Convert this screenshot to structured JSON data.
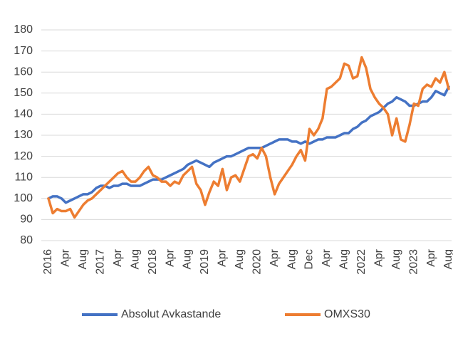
{
  "chart_data": {
    "type": "line",
    "categories": [
      "2016",
      null,
      null,
      null,
      "Apr",
      null,
      null,
      null,
      "Aug",
      null,
      null,
      null,
      "2017",
      null,
      null,
      null,
      "Apr",
      null,
      null,
      null,
      "Aug",
      null,
      null,
      null,
      "2018",
      null,
      null,
      null,
      "Apr",
      null,
      null,
      null,
      "Aug",
      null,
      null,
      null,
      "2019",
      null,
      null,
      null,
      "Apr",
      null,
      null,
      null,
      "Aug",
      null,
      null,
      null,
      "2020",
      null,
      null,
      null,
      "Apr",
      null,
      null,
      null,
      "Aug",
      null,
      null,
      null,
      "Dec",
      null,
      null,
      null,
      "Apr",
      null,
      null,
      null,
      "Aug",
      null,
      null,
      null,
      "2022",
      null,
      null,
      null,
      "Apr",
      null,
      null,
      null,
      "Aug",
      null,
      null,
      null,
      "2023",
      null,
      null,
      null,
      "Apr",
      null,
      null,
      null,
      "Aug"
    ],
    "series": [
      {
        "name": "Absolut Avkastande",
        "color": "#4472c4",
        "values": [
          100,
          101,
          101,
          100,
          98,
          99,
          100,
          101,
          102,
          102,
          103,
          105,
          106,
          106,
          105,
          106,
          106,
          107,
          107,
          106,
          106,
          106,
          107,
          108,
          109,
          109,
          109,
          110,
          111,
          112,
          113,
          114,
          116,
          117,
          118,
          117,
          116,
          115,
          117,
          118,
          119,
          120,
          120,
          121,
          122,
          123,
          124,
          124,
          124,
          124,
          125,
          126,
          127,
          128,
          128,
          128,
          127,
          127,
          126,
          127,
          126,
          127,
          128,
          128,
          129,
          129,
          129,
          130,
          131,
          131,
          133,
          134,
          136,
          137,
          139,
          140,
          141,
          143,
          145,
          146,
          148,
          147,
          146,
          144,
          144,
          145,
          146,
          146,
          148,
          151,
          150,
          149,
          153
        ]
      },
      {
        "name": "OMXS30",
        "color": "#ed7d31",
        "values": [
          100,
          93,
          95,
          94,
          94,
          95,
          91,
          94,
          97,
          99,
          100,
          102,
          104,
          106,
          108,
          110,
          112,
          113,
          110,
          108,
          108,
          110,
          113,
          115,
          111,
          110,
          108,
          108,
          106,
          108,
          107,
          111,
          113,
          115,
          107,
          104,
          97,
          103,
          108,
          106,
          114,
          104,
          110,
          111,
          108,
          114,
          120,
          121,
          119,
          124,
          120,
          110,
          102,
          107,
          110,
          113,
          116,
          120,
          123,
          118,
          133,
          130,
          133,
          138,
          152,
          153,
          155,
          157,
          164,
          163,
          157,
          158,
          167,
          162,
          152,
          148,
          145,
          143,
          140,
          130,
          138,
          128,
          127,
          135,
          145,
          144,
          152,
          154,
          153,
          157,
          155,
          160,
          152
        ]
      }
    ],
    "ylim": [
      80,
      180
    ],
    "yticks": [
      80,
      90,
      100,
      110,
      120,
      130,
      140,
      150,
      160,
      170,
      180
    ],
    "grid": true,
    "legend": "bottom"
  }
}
